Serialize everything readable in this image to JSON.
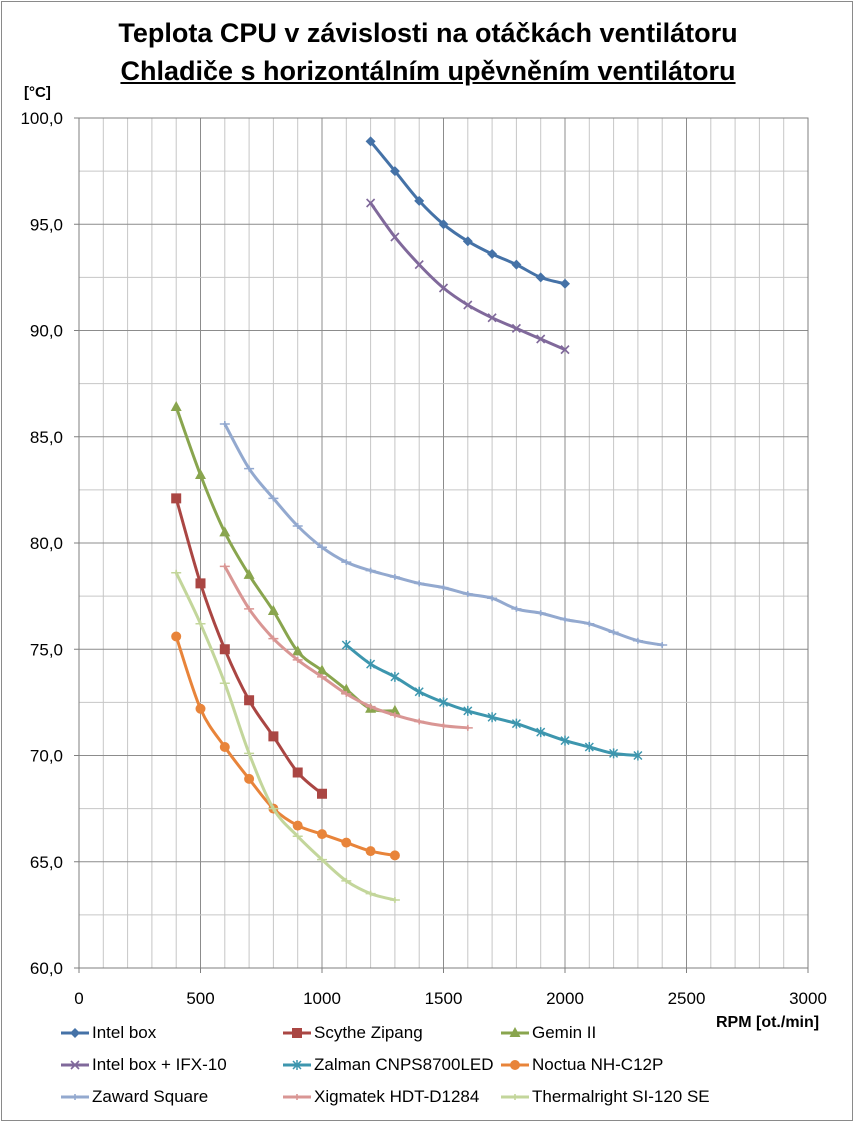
{
  "chart_data": {
    "type": "line",
    "title": "Teplota CPU v závislosti na otáčkách ventilátoru",
    "subtitle": "Chladiče s horizontálním upěvněním ventilátoru",
    "xlabel": "RPM [ot./min]",
    "ylabel": "[°C]",
    "xlim": [
      0,
      3000
    ],
    "ylim": [
      60,
      100
    ],
    "xticks": [
      "0",
      "500",
      "1000",
      "1500",
      "2000",
      "2500",
      "3000"
    ],
    "yticks": [
      "60,0",
      "65,0",
      "70,0",
      "75,0",
      "80,0",
      "85,0",
      "90,0",
      "95,0",
      "100,0"
    ],
    "grid": true,
    "legend_position": "bottom",
    "series": [
      {
        "name": "Intel box",
        "color": "#4572a7",
        "marker": "diamond",
        "x": [
          1200,
          1300,
          1400,
          1500,
          1600,
          1700,
          1800,
          1900,
          2000
        ],
        "y": [
          98.9,
          97.5,
          96.1,
          95.0,
          94.2,
          93.6,
          93.1,
          92.5,
          92.2
        ]
      },
      {
        "name": "Scythe Zipang",
        "color": "#aa4643",
        "marker": "square",
        "x": [
          400,
          500,
          600,
          700,
          800,
          900,
          1000
        ],
        "y": [
          82.1,
          78.1,
          75.0,
          72.6,
          70.9,
          69.2,
          68.2
        ]
      },
      {
        "name": "Gemin II",
        "color": "#89a54e",
        "marker": "triangle",
        "x": [
          400,
          500,
          600,
          700,
          800,
          900,
          1000,
          1100,
          1200,
          1300
        ],
        "y": [
          86.4,
          83.2,
          80.5,
          78.5,
          76.8,
          74.9,
          74.0,
          73.1,
          72.2,
          72.1
        ]
      },
      {
        "name": "Intel box + IFX-10",
        "color": "#80699b",
        "marker": "x",
        "x": [
          1200,
          1300,
          1400,
          1500,
          1600,
          1700,
          1800,
          1900,
          2000
        ],
        "y": [
          96.0,
          94.4,
          93.1,
          92.0,
          91.2,
          90.6,
          90.1,
          89.6,
          89.1
        ]
      },
      {
        "name": "Zalman CNPS8700LED",
        "color": "#3d96ae",
        "marker": "star",
        "x": [
          1100,
          1200,
          1300,
          1400,
          1500,
          1600,
          1700,
          1800,
          1900,
          2000,
          2100,
          2200,
          2300
        ],
        "y": [
          75.2,
          74.3,
          73.7,
          73.0,
          72.5,
          72.1,
          71.8,
          71.5,
          71.1,
          70.7,
          70.4,
          70.1,
          70.0
        ]
      },
      {
        "name": "Noctua NH-C12P",
        "color": "#e8843a",
        "marker": "circle",
        "x": [
          400,
          500,
          600,
          700,
          800,
          900,
          1000,
          1100,
          1200,
          1300
        ],
        "y": [
          75.6,
          72.2,
          70.4,
          68.9,
          67.5,
          66.7,
          66.3,
          65.9,
          65.5,
          65.3
        ]
      },
      {
        "name": "Zaward Square",
        "color": "#93a9cf",
        "marker": "plus",
        "x": [
          600,
          700,
          800,
          900,
          1000,
          1100,
          1200,
          1300,
          1400,
          1500,
          1600,
          1700,
          1800,
          1900,
          2000,
          2100,
          2200,
          2300,
          2400
        ],
        "y": [
          85.6,
          83.5,
          82.1,
          80.8,
          79.8,
          79.1,
          78.7,
          78.4,
          78.1,
          77.9,
          77.6,
          77.4,
          76.9,
          76.7,
          76.4,
          76.2,
          75.8,
          75.4,
          75.2
        ]
      },
      {
        "name": "Xigmatek HDT-D1284",
        "color": "#d99694",
        "marker": "plus",
        "x": [
          600,
          700,
          800,
          900,
          1000,
          1100,
          1200,
          1300,
          1400,
          1500,
          1600
        ],
        "y": [
          78.9,
          76.9,
          75.5,
          74.5,
          73.7,
          72.9,
          72.3,
          71.9,
          71.6,
          71.4,
          71.3
        ]
      },
      {
        "name": "Thermalright SI-120 SE",
        "color": "#c3d69b",
        "marker": "plus",
        "x": [
          400,
          500,
          600,
          700,
          800,
          900,
          1000,
          1100,
          1200,
          1300
        ],
        "y": [
          78.6,
          76.2,
          73.4,
          70.1,
          67.5,
          66.2,
          65.1,
          64.1,
          63.5,
          63.2
        ]
      }
    ]
  }
}
